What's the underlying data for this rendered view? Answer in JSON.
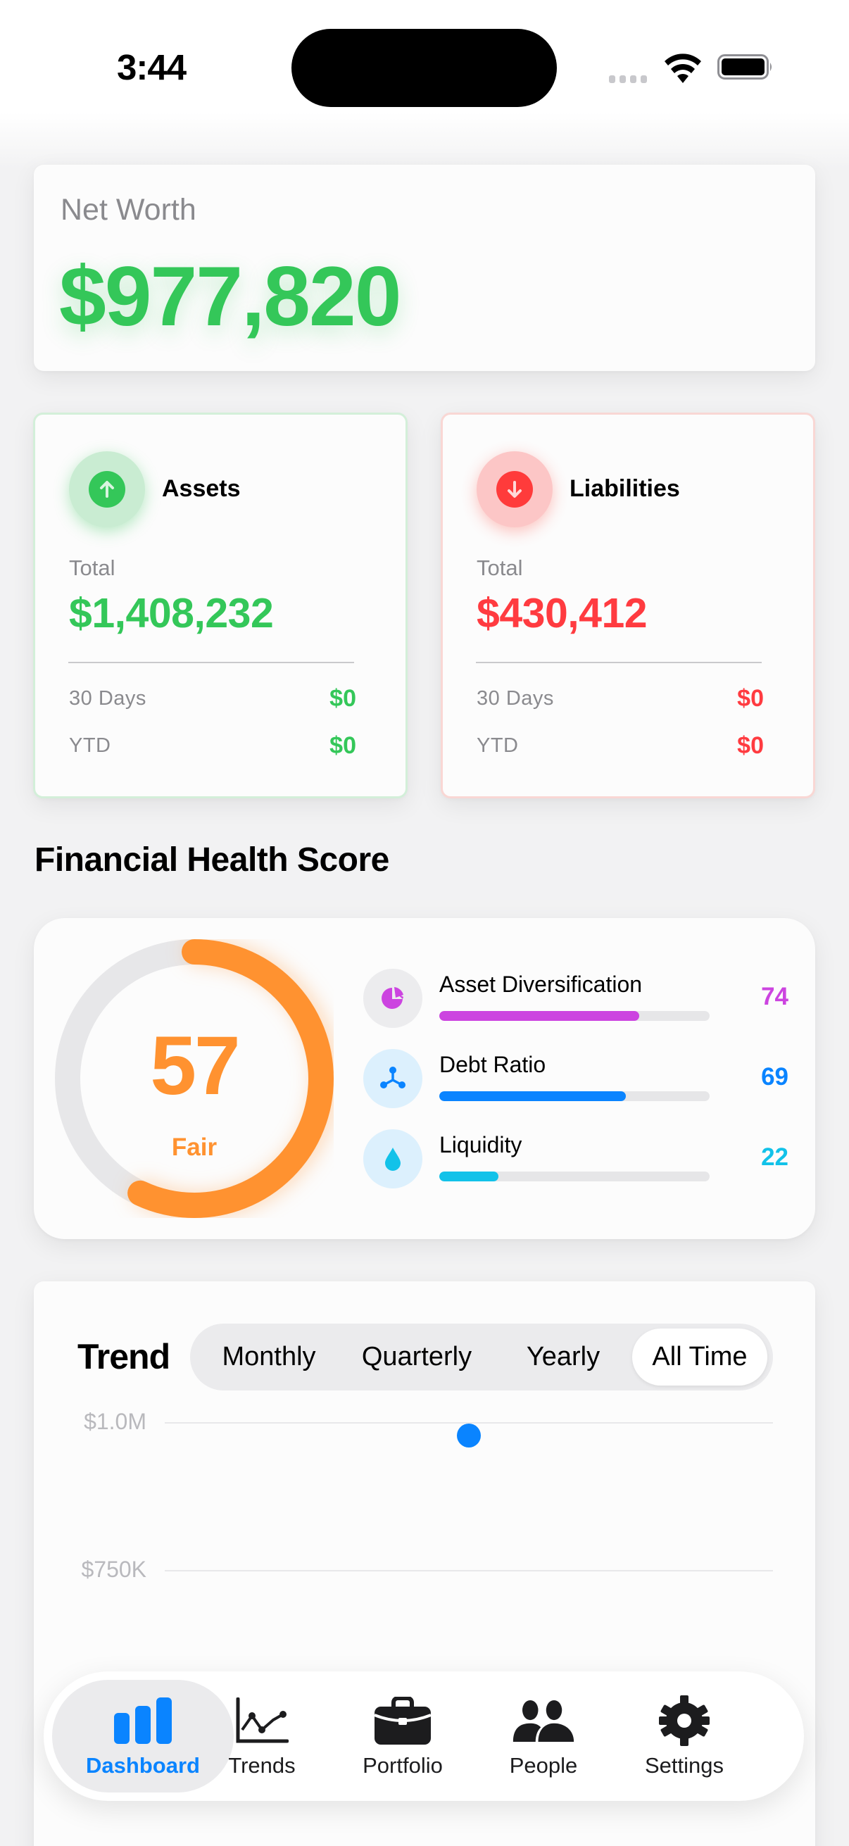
{
  "status_bar": {
    "time": "3:44",
    "icons": [
      "cellular-signal-icon",
      "wifi-icon",
      "battery-icon"
    ]
  },
  "net_worth": {
    "label": "Net Worth",
    "value": "$977,820",
    "color": "#34c759"
  },
  "assets": {
    "title": "Assets",
    "icon": "arrow-up-circle-icon",
    "total_label": "Total",
    "total": "$1,408,232",
    "stats": [
      {
        "label": "30 Days",
        "value": "$0"
      },
      {
        "label": "YTD",
        "value": "$0"
      }
    ],
    "color": "#34c759"
  },
  "liabilities": {
    "title": "Liabilities",
    "icon": "arrow-down-circle-icon",
    "total_label": "Total",
    "total": "$430,412",
    "stats": [
      {
        "label": "30 Days",
        "value": "$0"
      },
      {
        "label": "YTD",
        "value": "$0"
      }
    ],
    "color": "#ff3b40"
  },
  "health": {
    "section_title": "Financial Health Score",
    "score": "57",
    "score_label": "Fair",
    "score_percent": 57,
    "score_color": "#ff9230",
    "metrics": [
      {
        "name": "Asset Diversification",
        "value": "74",
        "percent": 74,
        "icon": "pie-chart-icon",
        "color": "#cc44e0",
        "icon_bg": "#ececee"
      },
      {
        "name": "Debt Ratio",
        "value": "69",
        "percent": 69,
        "icon": "network-nodes-icon",
        "color": "#0a84ff",
        "icon_bg": "#dcf0fd"
      },
      {
        "name": "Liquidity",
        "value": "22",
        "percent": 22,
        "icon": "water-drop-icon",
        "color": "#12c2e9",
        "icon_bg": "#dcf0fd"
      }
    ]
  },
  "trend": {
    "title": "Trend",
    "segments": [
      {
        "label": "Monthly",
        "selected": false
      },
      {
        "label": "Quarterly",
        "selected": false
      },
      {
        "label": "Yearly",
        "selected": false
      },
      {
        "label": "All Time",
        "selected": true
      }
    ]
  },
  "chart_data": {
    "type": "line",
    "title": "Trend",
    "xlabel": "",
    "ylabel": "",
    "y_tick_labels": [
      "$1.0M",
      "$750K"
    ],
    "y_ticks": [
      1000000,
      750000
    ],
    "grid": true,
    "legend": null,
    "series": [
      {
        "name": "Net Worth",
        "color": "#0a84ff",
        "points": [
          {
            "x": 0,
            "y": 977820
          }
        ]
      }
    ],
    "selected_range": "All Time"
  },
  "tab_bar": {
    "items": [
      {
        "label": "Dashboard",
        "icon": "bar-chart-icon",
        "active": true
      },
      {
        "label": "Trends",
        "icon": "line-chart-icon",
        "active": false
      },
      {
        "label": "Portfolio",
        "icon": "briefcase-icon",
        "active": false
      },
      {
        "label": "People",
        "icon": "people-icon",
        "active": false
      },
      {
        "label": "Settings",
        "icon": "gear-icon",
        "active": false
      }
    ],
    "active_color": "#0a84ff"
  }
}
